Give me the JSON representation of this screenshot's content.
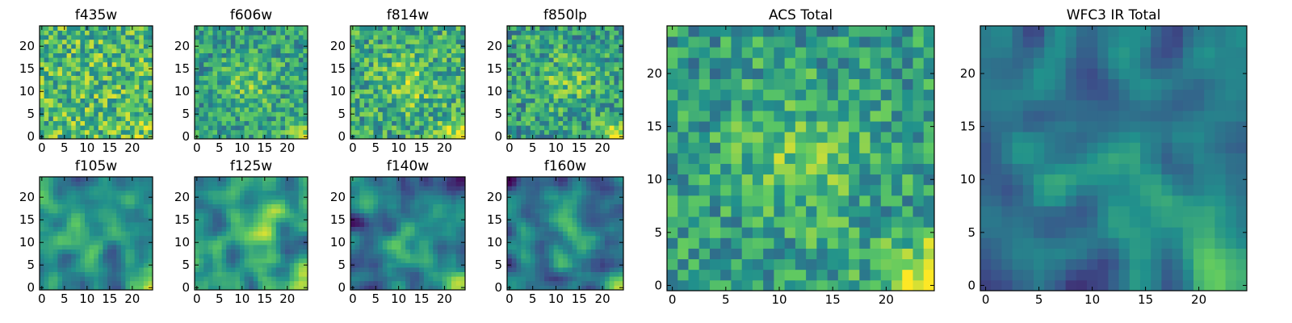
{
  "figure": {
    "colormap": "viridis",
    "colormap_stops": [
      "#440154",
      "#3b528b",
      "#21918c",
      "#5ec962",
      "#fde725"
    ]
  },
  "chart_data": [
    {
      "type": "heatmap",
      "title": "f435w",
      "grid": [
        25,
        25
      ],
      "xticks": [
        0,
        5,
        10,
        15,
        20
      ],
      "yticks": [
        0,
        5,
        10,
        15,
        20
      ],
      "xlim": [
        -0.5,
        24.5
      ],
      "ylim": [
        -0.5,
        24.5
      ],
      "pattern": "noise",
      "mean": 0.68,
      "spread": 0.55,
      "hotspot": 0.15
    },
    {
      "type": "heatmap",
      "title": "f606w",
      "grid": [
        25,
        25
      ],
      "xticks": [
        0,
        5,
        10,
        15,
        20
      ],
      "yticks": [
        0,
        5,
        10,
        15,
        20
      ],
      "xlim": [
        -0.5,
        24.5
      ],
      "ylim": [
        -0.5,
        24.5
      ],
      "pattern": "noise-center",
      "mean": 0.55,
      "spread": 0.45,
      "hotspot": 0.6
    },
    {
      "type": "heatmap",
      "title": "f814w",
      "grid": [
        25,
        25
      ],
      "xticks": [
        0,
        5,
        10,
        15,
        20
      ],
      "yticks": [
        0,
        5,
        10,
        15,
        20
      ],
      "xlim": [
        -0.5,
        24.5
      ],
      "ylim": [
        -0.5,
        24.5
      ],
      "pattern": "noise-center",
      "mean": 0.6,
      "spread": 0.5,
      "hotspot": 0.7
    },
    {
      "type": "heatmap",
      "title": "f850lp",
      "grid": [
        25,
        25
      ],
      "xticks": [
        0,
        5,
        10,
        15,
        20
      ],
      "yticks": [
        0,
        5,
        10,
        15,
        20
      ],
      "xlim": [
        -0.5,
        24.5
      ],
      "ylim": [
        -0.5,
        24.5
      ],
      "pattern": "noise-center",
      "mean": 0.55,
      "spread": 0.5,
      "hotspot": 0.7
    },
    {
      "type": "heatmap",
      "title": "f105w",
      "grid": [
        25,
        25
      ],
      "xticks": [
        0,
        5,
        10,
        15,
        20
      ],
      "yticks": [
        0,
        5,
        10,
        15,
        20
      ],
      "xlim": [
        -0.5,
        24.5
      ],
      "ylim": [
        -0.5,
        24.5
      ],
      "pattern": "smooth",
      "mean": 0.45,
      "spread": 0.28,
      "hotspot": 0.9
    },
    {
      "type": "heatmap",
      "title": "f125w",
      "grid": [
        25,
        25
      ],
      "xticks": [
        0,
        5,
        10,
        15,
        20
      ],
      "yticks": [
        0,
        5,
        10,
        15,
        20
      ],
      "xlim": [
        -0.5,
        24.5
      ],
      "ylim": [
        -0.5,
        24.5
      ],
      "pattern": "smooth",
      "mean": 0.5,
      "spread": 0.3,
      "hotspot": 0.9
    },
    {
      "type": "heatmap",
      "title": "f140w",
      "grid": [
        25,
        25
      ],
      "xticks": [
        0,
        5,
        10,
        15,
        20
      ],
      "yticks": [
        0,
        5,
        10,
        15,
        20
      ],
      "xlim": [
        -0.5,
        24.5
      ],
      "ylim": [
        -0.5,
        24.5
      ],
      "pattern": "smooth",
      "mean": 0.38,
      "spread": 0.3,
      "hotspot": 0.95
    },
    {
      "type": "heatmap",
      "title": "f160w",
      "grid": [
        25,
        25
      ],
      "xticks": [
        0,
        5,
        10,
        15,
        20
      ],
      "yticks": [
        0,
        5,
        10,
        15,
        20
      ],
      "xlim": [
        -0.5,
        24.5
      ],
      "ylim": [
        -0.5,
        24.5
      ],
      "pattern": "smooth",
      "mean": 0.35,
      "spread": 0.32,
      "hotspot": 0.95
    },
    {
      "type": "heatmap",
      "title": "ACS Total",
      "grid": [
        25,
        25
      ],
      "xticks": [
        0,
        5,
        10,
        15,
        20
      ],
      "yticks": [
        0,
        5,
        10,
        15,
        20
      ],
      "xlim": [
        -0.5,
        24.5
      ],
      "ylim": [
        -0.5,
        24.5
      ],
      "pattern": "noise-center",
      "mean": 0.55,
      "spread": 0.45,
      "hotspot": 0.9
    },
    {
      "type": "heatmap",
      "title": "WFC3 IR Total",
      "grid": [
        25,
        25
      ],
      "xticks": [
        0,
        5,
        10,
        15,
        20
      ],
      "yticks": [
        0,
        5,
        10,
        15,
        20
      ],
      "xlim": [
        -0.5,
        24.5
      ],
      "ylim": [
        -0.5,
        24.5
      ],
      "pattern": "smooth",
      "mean": 0.38,
      "spread": 0.25,
      "hotspot": 1.0
    }
  ]
}
